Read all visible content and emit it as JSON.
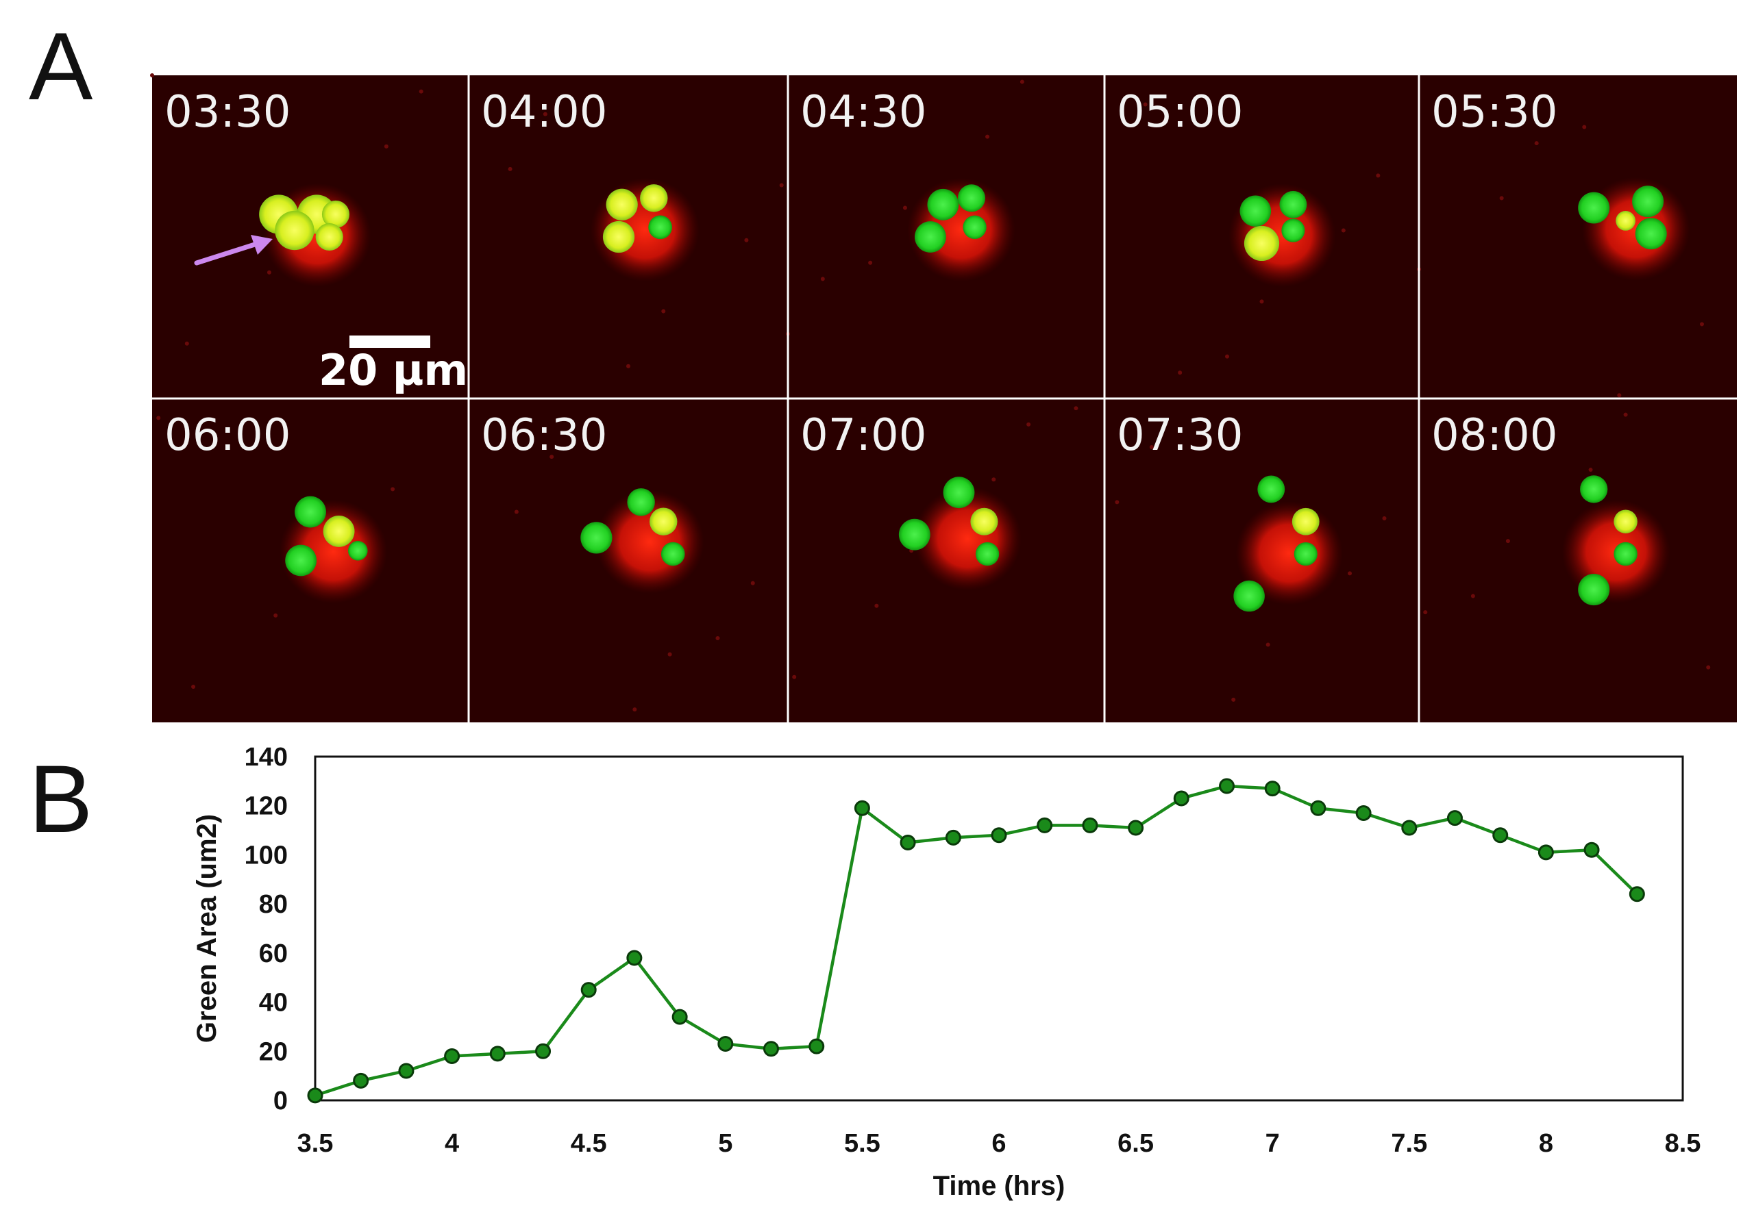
{
  "panels": {
    "a_label": "A",
    "b_label": "B"
  },
  "microscopy": {
    "scale_bar_label": "20 µm",
    "arrow_color": "#cc88ee",
    "frames": [
      {
        "time": "03:30",
        "blobs": [
          [
            "y",
            0.4,
            0.43,
            0.1
          ],
          [
            "y",
            0.52,
            0.43,
            0.1
          ],
          [
            "y",
            0.58,
            0.43,
            0.07
          ],
          [
            "y",
            0.45,
            0.48,
            0.1
          ],
          [
            "y",
            0.56,
            0.5,
            0.07
          ]
        ]
      },
      {
        "time": "04:00",
        "blobs": [
          [
            "y",
            0.48,
            0.4,
            0.08
          ],
          [
            "y",
            0.58,
            0.38,
            0.07
          ],
          [
            "g",
            0.6,
            0.47,
            0.06
          ],
          [
            "y",
            0.47,
            0.5,
            0.08
          ]
        ]
      },
      {
        "time": "04:30",
        "blobs": [
          [
            "g",
            0.49,
            0.4,
            0.08
          ],
          [
            "g",
            0.58,
            0.38,
            0.07
          ],
          [
            "g",
            0.45,
            0.5,
            0.08
          ],
          [
            "g",
            0.59,
            0.47,
            0.06
          ]
        ]
      },
      {
        "time": "05:00",
        "blobs": [
          [
            "g",
            0.48,
            0.42,
            0.08
          ],
          [
            "g",
            0.6,
            0.4,
            0.07
          ],
          [
            "y",
            0.5,
            0.52,
            0.09
          ],
          [
            "g",
            0.6,
            0.48,
            0.06
          ]
        ]
      },
      {
        "time": "05:30",
        "blobs": [
          [
            "g",
            0.55,
            0.41,
            0.08
          ],
          [
            "g",
            0.72,
            0.39,
            0.08
          ],
          [
            "y",
            0.65,
            0.45,
            0.05
          ],
          [
            "g",
            0.73,
            0.49,
            0.08
          ]
        ]
      },
      {
        "time": "06:00",
        "blobs": [
          [
            "g",
            0.5,
            0.35,
            0.08
          ],
          [
            "y",
            0.59,
            0.41,
            0.08
          ],
          [
            "g",
            0.47,
            0.5,
            0.08
          ],
          [
            "g",
            0.65,
            0.47,
            0.05
          ]
        ]
      },
      {
        "time": "06:30",
        "blobs": [
          [
            "g",
            0.54,
            0.32,
            0.07
          ],
          [
            "y",
            0.61,
            0.38,
            0.07
          ],
          [
            "g",
            0.4,
            0.43,
            0.08
          ],
          [
            "g",
            0.64,
            0.48,
            0.06
          ]
        ]
      },
      {
        "time": "07:00",
        "blobs": [
          [
            "g",
            0.54,
            0.29,
            0.08
          ],
          [
            "y",
            0.62,
            0.38,
            0.07
          ],
          [
            "g",
            0.4,
            0.42,
            0.08
          ],
          [
            "g",
            0.63,
            0.48,
            0.06
          ]
        ]
      },
      {
        "time": "07:30",
        "blobs": [
          [
            "g",
            0.53,
            0.28,
            0.07
          ],
          [
            "y",
            0.64,
            0.38,
            0.07
          ],
          [
            "g",
            0.64,
            0.48,
            0.06
          ],
          [
            "g",
            0.46,
            0.61,
            0.08
          ]
        ]
      },
      {
        "time": "08:00",
        "blobs": [
          [
            "g",
            0.55,
            0.28,
            0.07
          ],
          [
            "y",
            0.65,
            0.38,
            0.06
          ],
          [
            "g",
            0.65,
            0.48,
            0.06
          ],
          [
            "g",
            0.55,
            0.59,
            0.08
          ]
        ]
      }
    ]
  },
  "chart_data": {
    "type": "line",
    "xlabel": "Time (hrs)",
    "ylabel": "Green Area (um2)",
    "xlim": [
      3.5,
      8.5
    ],
    "ylim": [
      0,
      140
    ],
    "xticks": [
      "3.5",
      "4",
      "4.5",
      "5",
      "5.5",
      "6",
      "6.5",
      "7",
      "7.5",
      "8",
      "8.5"
    ],
    "yticks": [
      "0",
      "20",
      "40",
      "60",
      "80",
      "100",
      "120",
      "140"
    ],
    "grid": false,
    "legend": "none",
    "series": [
      {
        "color": "#1a8a1a",
        "x": [
          3.5,
          3.667,
          3.833,
          4.0,
          4.167,
          4.333,
          4.5,
          4.667,
          4.833,
          5.0,
          5.167,
          5.333,
          5.5,
          5.667,
          5.833,
          6.0,
          6.167,
          6.333,
          6.5,
          6.667,
          6.833,
          7.0,
          7.167,
          7.333,
          7.5,
          7.667,
          7.833,
          8.0,
          8.167,
          8.333
        ],
        "y": [
          2,
          8,
          12,
          18,
          19,
          20,
          45,
          58,
          34,
          23,
          21,
          22,
          119,
          105,
          107,
          108,
          112,
          112,
          111,
          123,
          128,
          127,
          119,
          117,
          111,
          115,
          108,
          101,
          102,
          84
        ]
      }
    ]
  }
}
